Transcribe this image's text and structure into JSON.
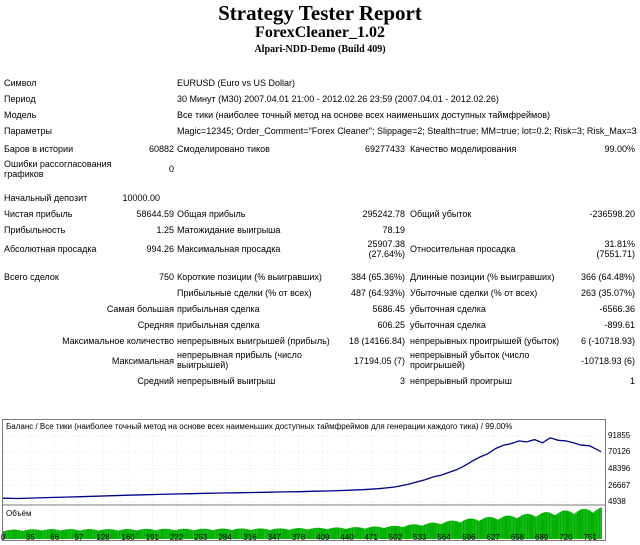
{
  "header": {
    "title": "Strategy Tester Report",
    "subtitle": "ForexCleaner_1.02",
    "server": "Alpari-NDD-Demo (Build 409)"
  },
  "params": [
    {
      "label": "Символ",
      "value": "EURUSD (Euro vs US Dollar)"
    },
    {
      "label": "Период",
      "value": "30 Минут (M30) 2007.04.01 21:00 - 2012.02.26 23:59 (2007.04.01 - 2012.02.26)"
    },
    {
      "label": "Модель",
      "value": "Все тики (наиболее точный метод на основе всех наименьших доступных таймфреймов)"
    },
    {
      "label": "Параметры",
      "value": "Magic=12345; Order_Comment=\"Forex Cleaner\"; Slippage=2; Stealth=true; MM=true; lot=0.2; Risk=3; Risk_Max=30;"
    }
  ],
  "stats": {
    "bars_label": "Баров в истории",
    "bars_value": "60882",
    "ticks_label": "Смоделировано тиков",
    "ticks_value": "69277433",
    "quality_label": "Качество моделирования",
    "quality_value": "99.00%",
    "errors_label": "Ошибки рассогласования графиков",
    "errors_value": "0",
    "deposit_label": "Начальный депозит",
    "deposit_value": "10000.00",
    "net_label": "Чистая прибыль",
    "net_value": "58644.59",
    "gross_profit_label": "Общая прибыль",
    "gross_profit_value": "295242.78",
    "gross_loss_label": "Общий убыток",
    "gross_loss_value": "-236598.20",
    "pf_label": "Прибыльность",
    "pf_value": "1.25",
    "payoff_label": "Матожидание выигрыша",
    "payoff_value": "78.19",
    "abs_dd_label": "Абсолютная просадка",
    "abs_dd_value": "994.26",
    "max_dd_label": "Максимальная просадка",
    "max_dd_value1": "25907.38",
    "max_dd_value2": "(27.64%)",
    "rel_dd_label": "Относительная просадка",
    "rel_dd_value1": "31.81%",
    "rel_dd_value2": "(7551.71)",
    "total_label": "Всего сделок",
    "total_value": "750",
    "short_label": "Короткие позиции (% выигравших)",
    "short_value": "384 (65.36%)",
    "long_label": "Длинные позиции (% выигравших)",
    "long_value": "366 (64.48%)",
    "prof_trades_label": "Прибыльные сделки (% от всех)",
    "prof_trades_value": "487 (64.93%)",
    "loss_trades_label": "Убыточные сделки (% от всех)",
    "loss_trades_value": "263 (35.07%)",
    "largest_label": "Самая большая",
    "largest_win_label": "прибыльная сделка",
    "largest_win_value": "5686.45",
    "largest_loss_label": "убыточная сделка",
    "largest_loss_value": "-6566.36",
    "avg_label": "Средняя",
    "avg_win_label": "прибыльная сделка",
    "avg_win_value": "606.25",
    "avg_loss_label": "убыточная сделка",
    "avg_loss_value": "-899.61",
    "maxcount_label": "Максимальное количество",
    "maxcount_win_label": "непрерывных выигрышей (прибыль)",
    "maxcount_win_value": "18 (14166.84)",
    "maxcount_loss_label": "непрерывных проигрышей (убыток)",
    "maxcount_loss_value": "6 (-10718.93)",
    "maximal_label": "Максимальная",
    "maximal_win_label": "непрерывная прибыль (число выигрышей)",
    "maximal_win_value": "17194.05 (7)",
    "maximal_loss_label": "непрерывный убыток (число проигрышей)",
    "maximal_loss_value": "-10718.93 (6)",
    "avg_cons_label": "Средний",
    "avg_cons_win_label": "непрерывный выигрыш",
    "avg_cons_win_value": "3",
    "avg_cons_loss_label": "непрерывный проигрыш",
    "avg_cons_loss_value": "1"
  },
  "chart_data": {
    "type": "line",
    "title": "Баланс / Все тики (наиболее точный метод на основе всех наименьших доступных таймфреймов для генерации каждого тика) / 99.00%",
    "volume_label": "Объём",
    "yticks": [
      "91855",
      "70126",
      "48396",
      "26667",
      "4938"
    ],
    "ylim": [
      4938,
      91855
    ],
    "xticks": [
      "0",
      "35",
      "66",
      "97",
      "128",
      "160",
      "191",
      "222",
      "253",
      "284",
      "316",
      "347",
      "378",
      "409",
      "440",
      "471",
      "502",
      "533",
      "564",
      "596",
      "627",
      "658",
      "689",
      "720",
      "751"
    ],
    "xlim": [
      0,
      770
    ],
    "line_color": "#00008b",
    "volume_color": "#00b000",
    "series": [
      {
        "x": [
          0,
          20,
          40,
          60,
          80,
          100,
          120,
          140,
          160,
          180,
          200,
          220,
          240,
          260,
          280,
          300,
          320,
          340,
          360,
          380,
          400,
          420,
          440,
          460,
          480,
          500,
          510,
          520,
          530,
          540,
          550,
          560,
          570,
          580,
          590,
          600,
          610,
          620,
          630,
          640,
          650,
          660,
          670,
          680,
          690,
          700,
          710,
          720,
          730,
          740,
          750,
          760,
          765
        ],
        "y": [
          10000,
          9600,
          10200,
          10900,
          11400,
          11900,
          12600,
          13300,
          13900,
          14400,
          14900,
          15500,
          15900,
          16400,
          16800,
          17100,
          17500,
          17900,
          18200,
          18500,
          19100,
          19600,
          20400,
          21200,
          22500,
          24600,
          26500,
          28600,
          31500,
          34300,
          37800,
          40200,
          43800,
          47300,
          52500,
          58700,
          64200,
          68400,
          75200,
          79600,
          81900,
          85400,
          84100,
          87100,
          82900,
          89500,
          86200,
          85400,
          82800,
          79800,
          79100,
          73800,
          71200
        ]
      }
    ],
    "volume": {
      "x": [
        0,
        50,
        100,
        150,
        200,
        250,
        300,
        350,
        400,
        450,
        500,
        550,
        600,
        650,
        700,
        750,
        765
      ],
      "y": [
        0.28,
        0.3,
        0.3,
        0.3,
        0.31,
        0.31,
        0.32,
        0.32,
        0.34,
        0.36,
        0.4,
        0.5,
        0.63,
        0.72,
        0.83,
        0.93,
        0.96
      ]
    }
  }
}
